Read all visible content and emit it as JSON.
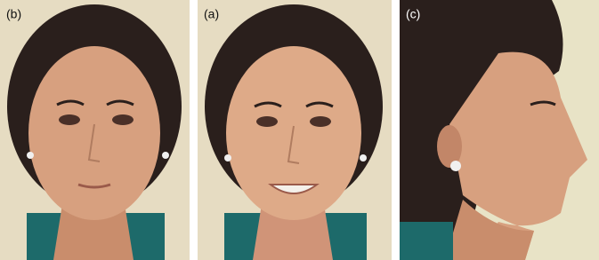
{
  "panels": [
    {
      "label": "(b)"
    },
    {
      "label": "(a)"
    },
    {
      "label": "(c)"
    }
  ]
}
